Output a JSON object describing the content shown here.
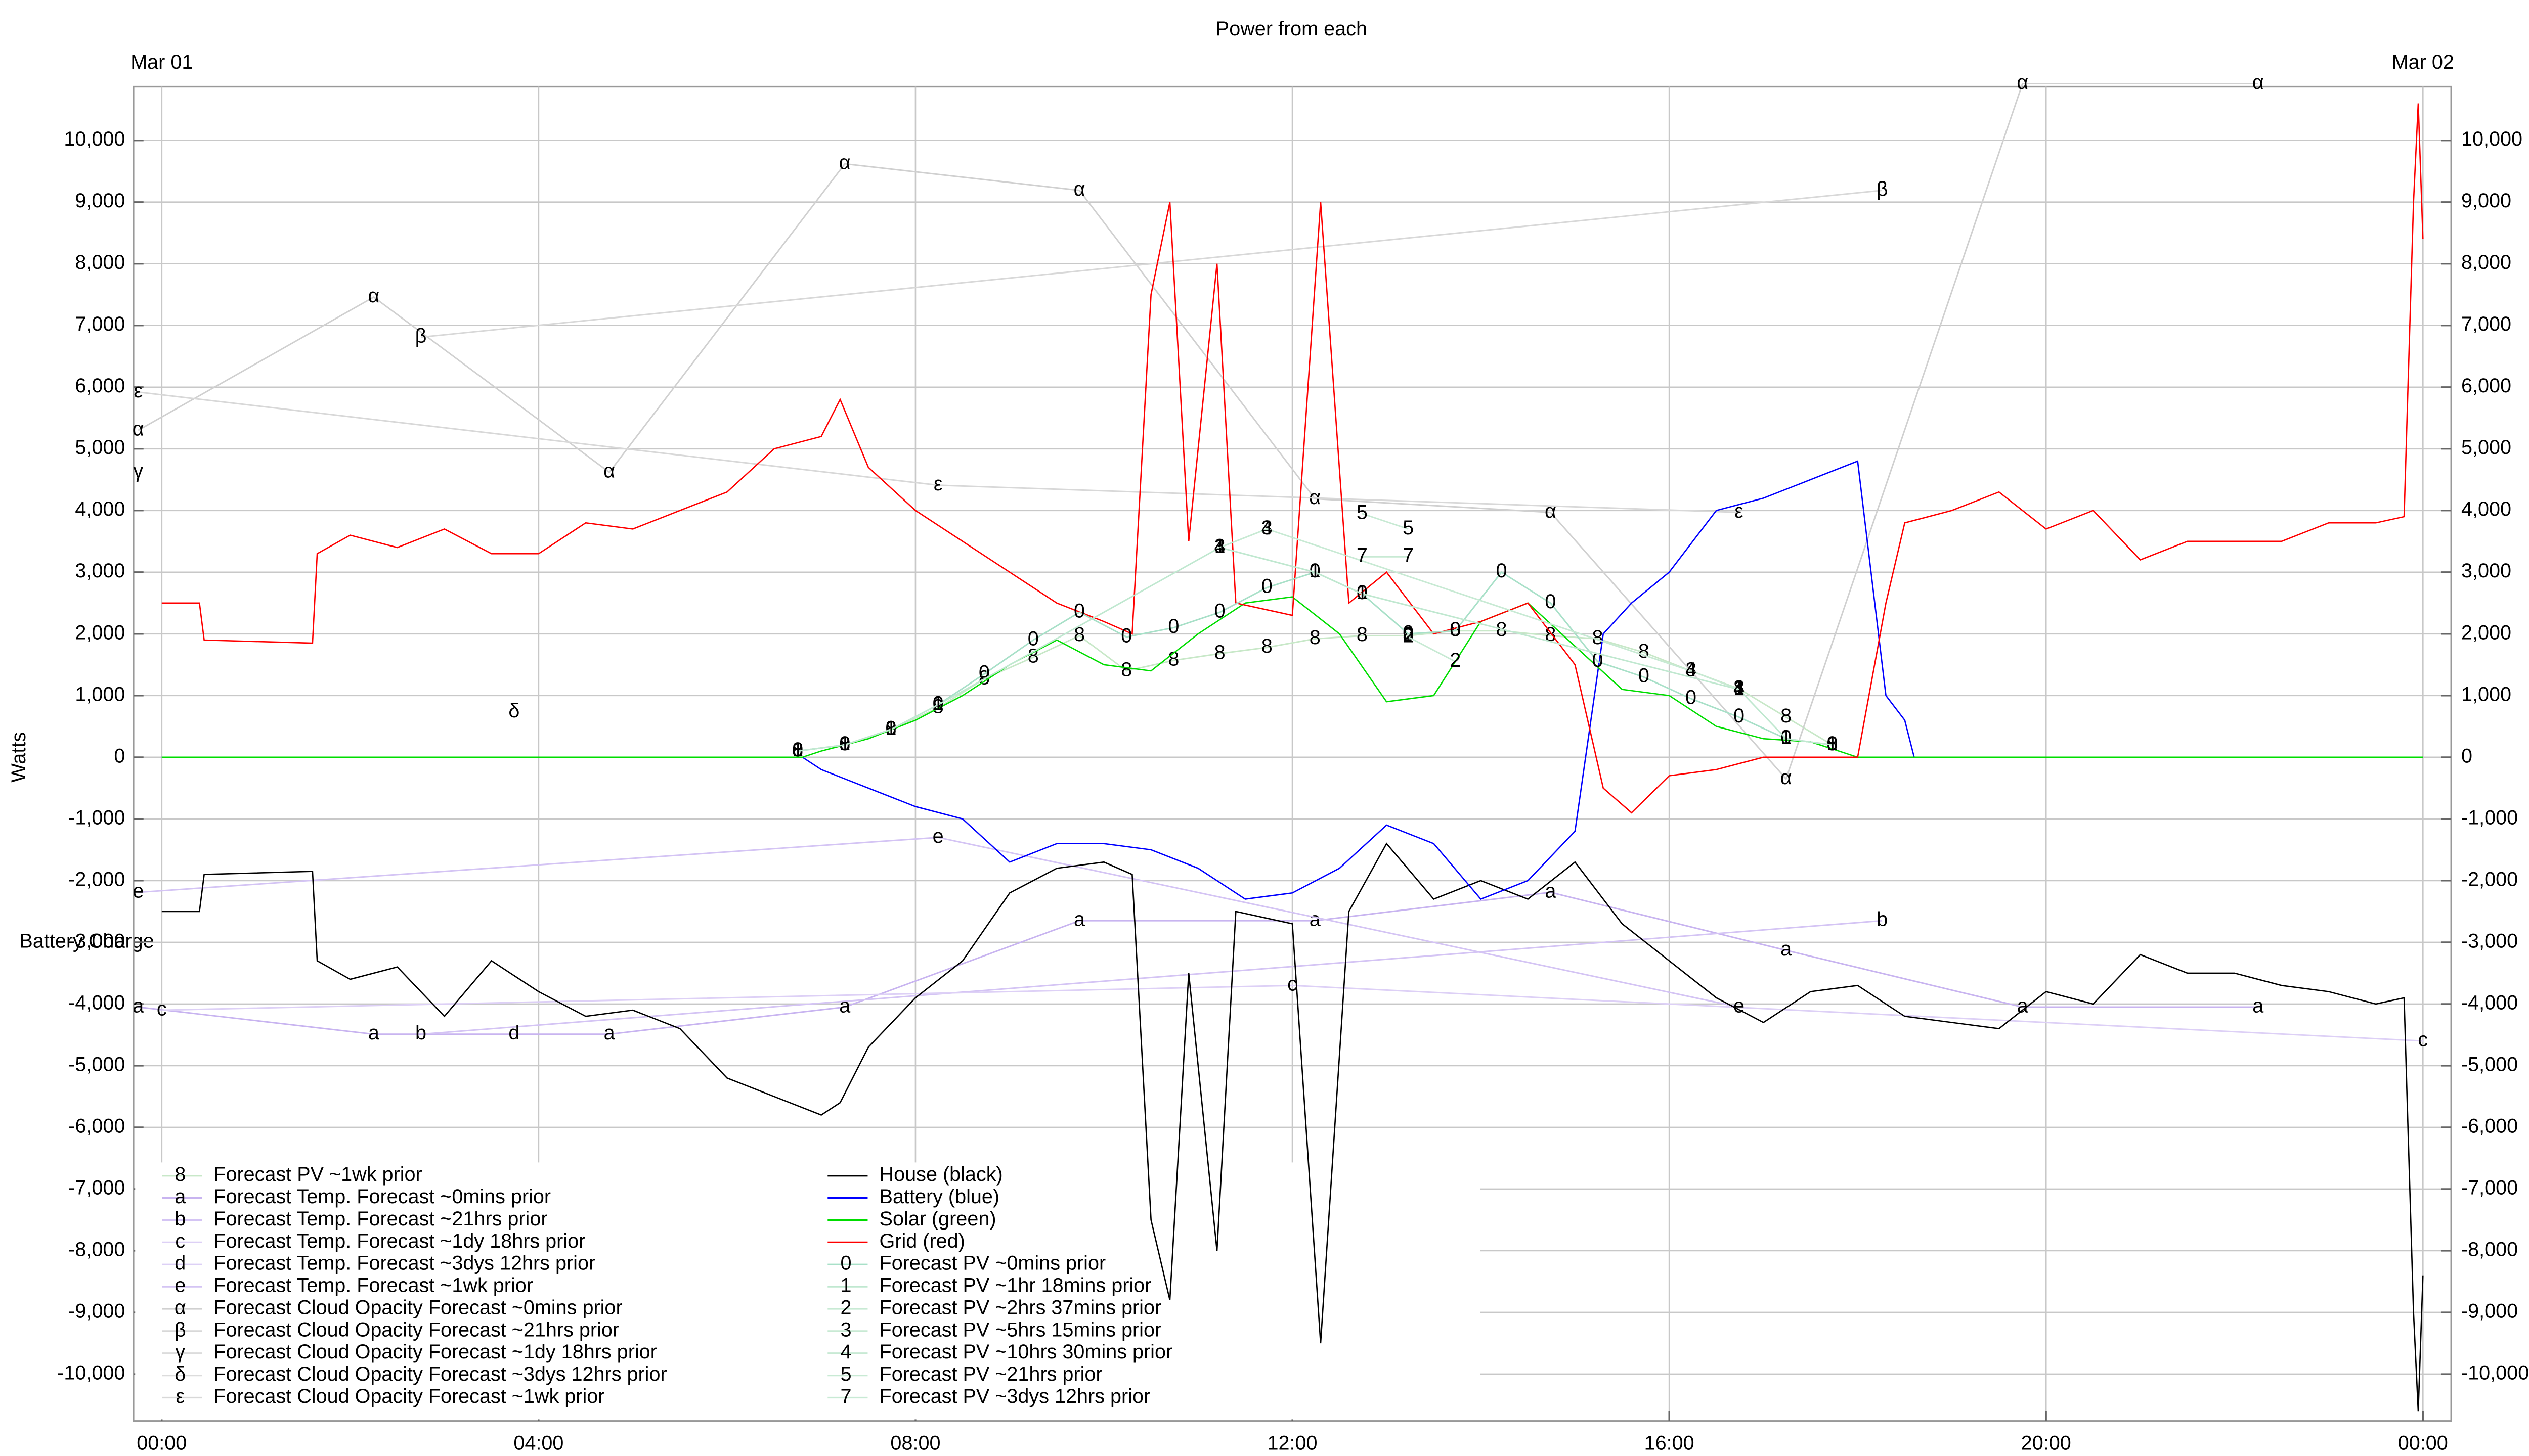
{
  "chart_data": {
    "type": "line",
    "title": "Power from each",
    "y_label": "Watts",
    "side_label": "Battery Charge",
    "top_labels": [
      {
        "value": 0,
        "label": "Mar 01"
      },
      {
        "value": 24,
        "label": "Mar 02"
      }
    ],
    "xlim": [
      -0.3,
      24.3
    ],
    "xticks": [
      {
        "value": 0,
        "label": "00:00"
      },
      {
        "value": 4,
        "label": "04:00"
      },
      {
        "value": 8,
        "label": "08:00"
      },
      {
        "value": 12,
        "label": "12:00"
      },
      {
        "value": 16,
        "label": "16:00"
      },
      {
        "value": 20,
        "label": "20:00"
      },
      {
        "value": 24,
        "label": "00:00"
      }
    ],
    "ylim": [
      -10760,
      10870
    ],
    "yticks": [
      {
        "value": -10000,
        "label": "-10,000"
      },
      {
        "value": -9000,
        "label": "-9,000"
      },
      {
        "value": -8000,
        "label": "-8,000"
      },
      {
        "value": -7000,
        "label": "-7,000"
      },
      {
        "value": -6000,
        "label": "-6,000"
      },
      {
        "value": -5000,
        "label": "-5,000"
      },
      {
        "value": -4000,
        "label": "-4,000"
      },
      {
        "value": -3000,
        "label": "-3,000"
      },
      {
        "value": -2000,
        "label": "-2,000"
      },
      {
        "value": -1000,
        "label": "-1,000"
      },
      0,
      {
        "value": 1000,
        "label": "1,000"
      },
      {
        "value": 2000,
        "label": "2,000"
      },
      {
        "value": 3000,
        "label": "3,000"
      },
      {
        "value": 4000,
        "label": "4,000"
      },
      {
        "value": 5000,
        "label": "5,000"
      },
      {
        "value": 6000,
        "label": "6,000"
      },
      {
        "value": 7000,
        "label": "7,000"
      },
      {
        "value": 8000,
        "label": "8,000"
      },
      {
        "value": 9000,
        "label": "9,000"
      },
      {
        "value": 10000,
        "label": "10,000"
      }
    ],
    "grid": true,
    "legend": "lower left",
    "series": [
      {
        "name": "Forecast PV ~1wk prior",
        "symbol": "8",
        "color": "#c8e8c8",
        "x": [
          6.75,
          7.25,
          7.74,
          8.24,
          8.73,
          9.25,
          9.74,
          10.24,
          10.74,
          11.23,
          11.73,
          12.24,
          12.74,
          13.23,
          13.73,
          14.22,
          14.74,
          15.24,
          15.73,
          16.23,
          16.74,
          17.24,
          17.73
        ],
        "values": [
          100,
          200,
          450,
          800,
          1270,
          1620,
          1970,
          1400,
          1570,
          1680,
          1780,
          1920,
          1970,
          1970,
          2050,
          2050,
          1970,
          1920,
          1700,
          1400,
          1110,
          650,
          200
        ]
      },
      {
        "name": "Forecast Temp. Forecast ~0mins prior",
        "symbol": "a",
        "color": "#c8b4f0",
        "x": [
          -0.25,
          2.25,
          4.75,
          7.25,
          9.74,
          12.24,
          14.74,
          17.24,
          19.75,
          22.25
        ],
        "values": [
          -4050,
          -4490,
          -4490,
          -4050,
          -2650,
          -2650,
          -2190,
          -3130,
          -4050,
          -4050
        ]
      },
      {
        "name": "Forecast Temp. Forecast ~21hrs prior",
        "symbol": "b",
        "color": "#d4c4f4",
        "x": [
          2.75,
          18.26
        ],
        "values": [
          -4490,
          -2650
        ]
      },
      {
        "name": "Forecast Temp. Forecast ~1dy 18hrs prior",
        "symbol": "c",
        "color": "#ddd0f6",
        "x": [
          0,
          12,
          24
        ],
        "values": [
          -4100,
          -3700,
          -4600
        ]
      },
      {
        "name": "Forecast Temp. Forecast ~3dys 12hrs prior",
        "symbol": "d",
        "color": "#ddd0f6",
        "x": [
          3.74
        ],
        "values": [
          -4490
        ]
      },
      {
        "name": "Forecast Temp. Forecast ~1wk prior",
        "symbol": "e",
        "color": "#d4c4f4",
        "x": [
          -0.25,
          8.24,
          16.74
        ],
        "values": [
          -2190,
          -1300,
          -4050
        ]
      },
      {
        "name": "Forecast Cloud Opacity Forecast ~0mins prior",
        "symbol": "α",
        "color": "#d0d0d0",
        "x": [
          -0.25,
          2.25,
          4.75,
          7.25,
          9.74,
          12.24,
          14.74,
          17.24,
          19.75,
          22.25
        ],
        "values": [
          5300,
          7460,
          4620,
          9620,
          9190,
          4190,
          3970,
          -350,
          10920,
          10920
        ]
      },
      {
        "name": "Forecast Cloud Opacity Forecast ~21hrs prior",
        "symbol": "β",
        "color": "#d8d8d8",
        "x": [
          2.75,
          18.26
        ],
        "values": [
          6810,
          9190
        ]
      },
      {
        "name": "Forecast Cloud Opacity Forecast ~1dy 18hrs prior",
        "symbol": "γ",
        "color": "#dcdcdc",
        "x": [
          -0.25
        ],
        "values": [
          4620
        ]
      },
      {
        "name": "Forecast Cloud Opacity Forecast ~3dys 12hrs prior",
        "symbol": "δ",
        "color": "#dcdcdc",
        "x": [
          3.74
        ],
        "values": [
          730
        ]
      },
      {
        "name": "Forecast Cloud Opacity Forecast ~1wk prior",
        "symbol": "ε",
        "color": "#d8d8d8",
        "x": [
          -0.25,
          8.24,
          16.74
        ],
        "values": [
          5920,
          4410,
          3970
        ]
      },
      {
        "name": "House (black)",
        "color": "#000000",
        "x": [
          0,
          0.4,
          0.45,
          1.6,
          1.65,
          2,
          2.5,
          3,
          3.5,
          4,
          4.5,
          5,
          5.5,
          6,
          6.5,
          7,
          7.2,
          7.5,
          8,
          8.5,
          9,
          9.5,
          10,
          10.3,
          10.5,
          10.7,
          10.9,
          11.2,
          11.4,
          12,
          12.3,
          12.6,
          13,
          13.5,
          14,
          14.5,
          15,
          15.5,
          16,
          16.5,
          17,
          17.5,
          18,
          18.5,
          19,
          19.5,
          20,
          20.5,
          21,
          21.5,
          22,
          22.5,
          23,
          23.5,
          23.8,
          23.9,
          23.95,
          24
        ],
        "values": [
          -2500,
          -2500,
          -1900,
          -1850,
          -3300,
          -3600,
          -3400,
          -4200,
          -3300,
          -3800,
          -4200,
          -4100,
          -4400,
          -5200,
          -5500,
          -5800,
          -5600,
          -4700,
          -3900,
          -3300,
          -2200,
          -1800,
          -1700,
          -1900,
          -7500,
          -8800,
          -3500,
          -8000,
          -2500,
          -2700,
          -9500,
          -2500,
          -1400,
          -2300,
          -2000,
          -2300,
          -1700,
          -2700,
          -3300,
          -3900,
          -4300,
          -3800,
          -3700,
          -4200,
          -4300,
          -4400,
          -3800,
          -4000,
          -3200,
          -3500,
          -3500,
          -3700,
          -3800,
          -4000,
          -3900,
          -9000,
          -10600,
          -8400
        ]
      },
      {
        "name": "Battery (blue)",
        "color": "#0000ff",
        "x": [
          0,
          6.8,
          7,
          7.5,
          8,
          8.5,
          9,
          9.5,
          10,
          10.5,
          11,
          11.5,
          12,
          12.5,
          13,
          13.5,
          14,
          14.5,
          15,
          15.3,
          15.6,
          16,
          16.5,
          17,
          17.5,
          18,
          18.3,
          18.5,
          18.6,
          24
        ],
        "values": [
          0,
          0,
          -200,
          -500,
          -800,
          -1000,
          -1700,
          -1400,
          -1400,
          -1500,
          -1800,
          -2300,
          -2200,
          -1800,
          -1100,
          -1400,
          -2300,
          -2000,
          -1200,
          2000,
          2500,
          3000,
          4000,
          4200,
          4500,
          4800,
          1000,
          600,
          0,
          0
        ]
      },
      {
        "name": "Solar (green)",
        "color": "#00dd00",
        "x": [
          0,
          6.8,
          7,
          7.5,
          8,
          8.5,
          9,
          9.5,
          10,
          10.5,
          11,
          11.5,
          12,
          12.5,
          13,
          13.5,
          14,
          14.5,
          15,
          15.5,
          16,
          16.5,
          17,
          17.5,
          18,
          24
        ],
        "values": [
          0,
          0,
          100,
          300,
          600,
          1000,
          1500,
          1900,
          1500,
          1400,
          2000,
          2500,
          2600,
          2000,
          900,
          1000,
          2200,
          2500,
          1800,
          1100,
          1000,
          500,
          300,
          250,
          0,
          0
        ]
      },
      {
        "name": "Grid (red)",
        "color": "#ff0000",
        "x": [
          0,
          0.4,
          0.45,
          1.6,
          1.65,
          2,
          2.5,
          3,
          3.5,
          4,
          4.5,
          5,
          5.5,
          6,
          6.5,
          7,
          7.2,
          7.5,
          8,
          8.5,
          9,
          9.5,
          10,
          10.3,
          10.5,
          10.7,
          10.9,
          11.2,
          11.4,
          12,
          12.3,
          12.6,
          13,
          13.5,
          14,
          14.5,
          15,
          15.3,
          15.6,
          16,
          16.5,
          17,
          17.5,
          18,
          18.3,
          18.5,
          19,
          19.5,
          20,
          20.5,
          21,
          21.5,
          22,
          22.5,
          23,
          23.5,
          23.8,
          23.9,
          23.95,
          24
        ],
        "values": [
          2500,
          2500,
          1900,
          1850,
          3300,
          3600,
          3400,
          3700,
          3300,
          3300,
          3800,
          3700,
          4000,
          4300,
          5000,
          5200,
          5800,
          4700,
          4000,
          3500,
          3000,
          2500,
          2200,
          2000,
          7500,
          9000,
          3500,
          8000,
          2500,
          2300,
          9000,
          2500,
          3000,
          2000,
          2200,
          2500,
          1500,
          -500,
          -900,
          -300,
          -200,
          0,
          0,
          0,
          2500,
          3800,
          4000,
          4300,
          3700,
          4000,
          3200,
          3500,
          3500,
          3500,
          3800,
          3800,
          3900,
          9000,
          10600,
          8400
        ]
      },
      {
        "name": "Forecast PV ~0mins prior",
        "symbol": "0",
        "color": "#a8e0c8",
        "x": [
          6.75,
          7.25,
          7.74,
          8.24,
          8.73,
          9.25,
          9.74,
          10.24,
          10.74,
          11.23,
          11.73,
          12.24,
          12.74,
          13.23,
          13.73,
          14.22,
          14.74,
          15.24,
          15.73,
          16.23,
          16.74,
          17.24,
          17.73
        ],
        "values": [
          100,
          200,
          450,
          850,
          1350,
          1900,
          2350,
          1950,
          2100,
          2350,
          2750,
          3000,
          2650,
          2000,
          2050,
          3000,
          2500,
          1550,
          1300,
          950,
          650,
          300,
          200
        ]
      },
      {
        "name": "Forecast PV ~1hr 18mins prior",
        "symbol": "1",
        "color": "#c0e8d0",
        "x": [
          6.75,
          7.25,
          7.74,
          8.24,
          11.23,
          12.24,
          12.74,
          16.74,
          17.24,
          17.73
        ],
        "values": [
          100,
          200,
          450,
          850,
          3400,
          3000,
          2650,
          1100,
          300,
          200
        ]
      },
      {
        "name": "Forecast PV ~2hrs 37mins prior",
        "symbol": "2",
        "color": "#c8ead4",
        "x": [
          13.23,
          13.73
        ],
        "values": [
          1950,
          1550
        ]
      },
      {
        "name": "Forecast PV ~5hrs 15mins prior",
        "symbol": "3",
        "color": "#c8ead4",
        "x": [
          11.23,
          11.73
        ],
        "values": [
          3400,
          3700
        ]
      },
      {
        "name": "Forecast PV ~10hrs 30mins prior",
        "symbol": "4",
        "color": "#c8ead4",
        "x": [
          11.23,
          11.73,
          16.23,
          16.74
        ],
        "values": [
          3400,
          3700,
          1400,
          1100
        ]
      },
      {
        "name": "Forecast PV ~21hrs prior",
        "symbol": "5",
        "color": "#c8ead4",
        "x": [
          12.74,
          13.23
        ],
        "values": [
          3950,
          3700
        ]
      },
      {
        "name": "Forecast PV ~3dys 12hrs prior",
        "symbol": "7",
        "color": "#c8ead4",
        "x": [
          12.74,
          13.23
        ],
        "values": [
          3250,
          3250
        ]
      }
    ]
  }
}
